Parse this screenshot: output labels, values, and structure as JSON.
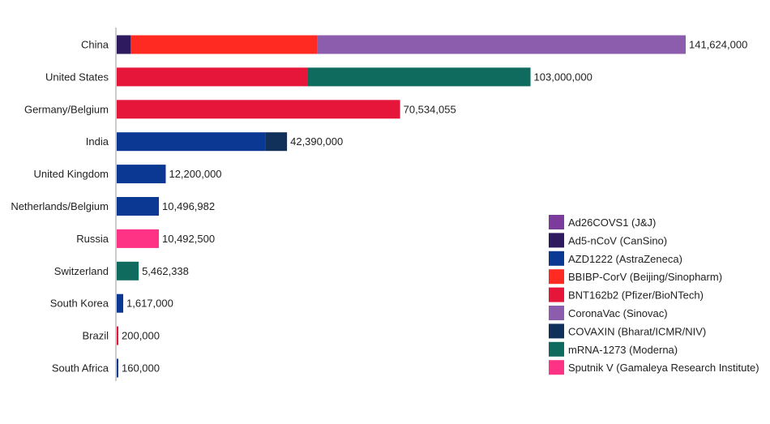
{
  "chart_data": {
    "type": "bar",
    "orientation": "horizontal",
    "stacked": true,
    "title": "",
    "xlabel": "",
    "ylabel": "",
    "grid": false,
    "legend_position": "bottom-right",
    "categories": [
      "China",
      "United States",
      "Germany/Belgium",
      "India",
      "United Kingdom",
      "Netherlands/Belgium",
      "Russia",
      "Switzerland",
      "South Korea",
      "Brazil",
      "South Africa"
    ],
    "total_labels": [
      "141,624,000",
      "103,000,000",
      "70,534,055",
      "42,390,000",
      "12,200,000",
      "10,496,982",
      "10,492,500",
      "5,462,338",
      "1,617,000",
      "200,000",
      "160,000"
    ],
    "totals": [
      141624000,
      103000000,
      70534055,
      42390000,
      12200000,
      10496982,
      10492500,
      5462338,
      1617000,
      200000,
      160000
    ],
    "series": [
      {
        "name": "Ad26COVS1 (J&J)",
        "color": "#7c3c9c",
        "values": [
          0,
          0,
          0,
          0,
          0,
          0,
          0,
          0,
          0,
          0,
          0
        ]
      },
      {
        "name": "Ad5-nCoV (CanSino)",
        "color": "#2e1a5e",
        "values": [
          3500000,
          0,
          0,
          0,
          0,
          0,
          0,
          0,
          0,
          0,
          0
        ]
      },
      {
        "name": "AZD1222 (AstraZeneca)",
        "color": "#0b3893",
        "values": [
          0,
          0,
          0,
          37000000,
          12200000,
          10496982,
          0,
          0,
          1617000,
          0,
          160000
        ]
      },
      {
        "name": "BBIBP-CorV (Beijing/Sinopharm)",
        "color": "#ff2a22",
        "values": [
          46500000,
          0,
          0,
          0,
          0,
          0,
          0,
          0,
          0,
          0,
          0
        ]
      },
      {
        "name": "BNT162b2 (Pfizer/BioNTech)",
        "color": "#e5163a",
        "values": [
          0,
          47500000,
          70534055,
          0,
          0,
          0,
          0,
          0,
          0,
          200000,
          0
        ]
      },
      {
        "name": "CoronaVac (Sinovac)",
        "color": "#8c5dad",
        "values": [
          91624000,
          0,
          0,
          0,
          0,
          0,
          0,
          0,
          0,
          0,
          0
        ]
      },
      {
        "name": "COVAXIN (Bharat/ICMR/NIV)",
        "color": "#11315a",
        "values": [
          0,
          0,
          0,
          5390000,
          0,
          0,
          0,
          0,
          0,
          0,
          0
        ]
      },
      {
        "name": "mRNA-1273 (Moderna)",
        "color": "#0e6b5e",
        "values": [
          0,
          55500000,
          0,
          0,
          0,
          0,
          0,
          5462338,
          0,
          0,
          0
        ]
      },
      {
        "name": "Sputnik V (Gamaleya Research Institute)",
        "color": "#ff3385",
        "values": [
          0,
          0,
          0,
          0,
          0,
          0,
          10492500,
          0,
          0,
          0,
          0
        ]
      }
    ]
  }
}
